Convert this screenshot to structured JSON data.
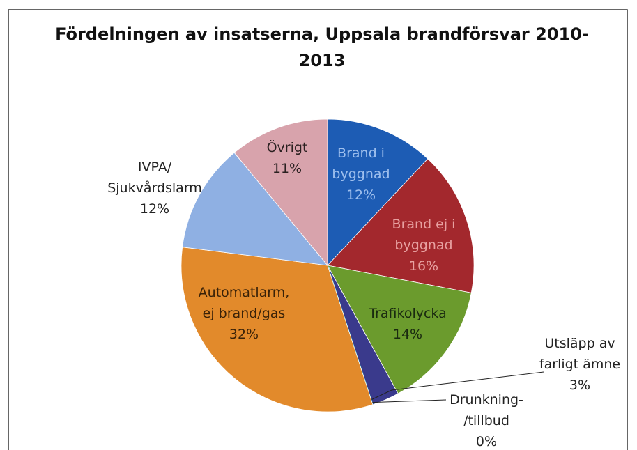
{
  "chart_data": {
    "type": "pie",
    "title": "Fördelningen av insatserna, Uppsala brandförsvar 2010-\n2013",
    "categories": [
      "Brand i\nbyggnad",
      "Brand ej i\nbyggnad",
      "Trafikolycka",
      "Utsläpp av\nfarligt ämne",
      "Drunkning-\n/tillbud",
      "Automatlarm,\nej brand/gas",
      "IVPA/\nSjukvårdslarm",
      "Övrigt"
    ],
    "values": [
      12,
      16,
      14,
      3,
      0,
      32,
      12,
      11
    ],
    "value_labels": [
      "12%",
      "16%",
      "14%",
      "3%",
      "0%",
      "32%",
      "12%",
      "11%"
    ],
    "colors": [
      "#1d5cb4",
      "#a3282d",
      "#6b9b2d",
      "#3a3a8c",
      "#2a9fb0",
      "#e28a2b",
      "#8fb0e3",
      "#d8a3ac"
    ]
  }
}
